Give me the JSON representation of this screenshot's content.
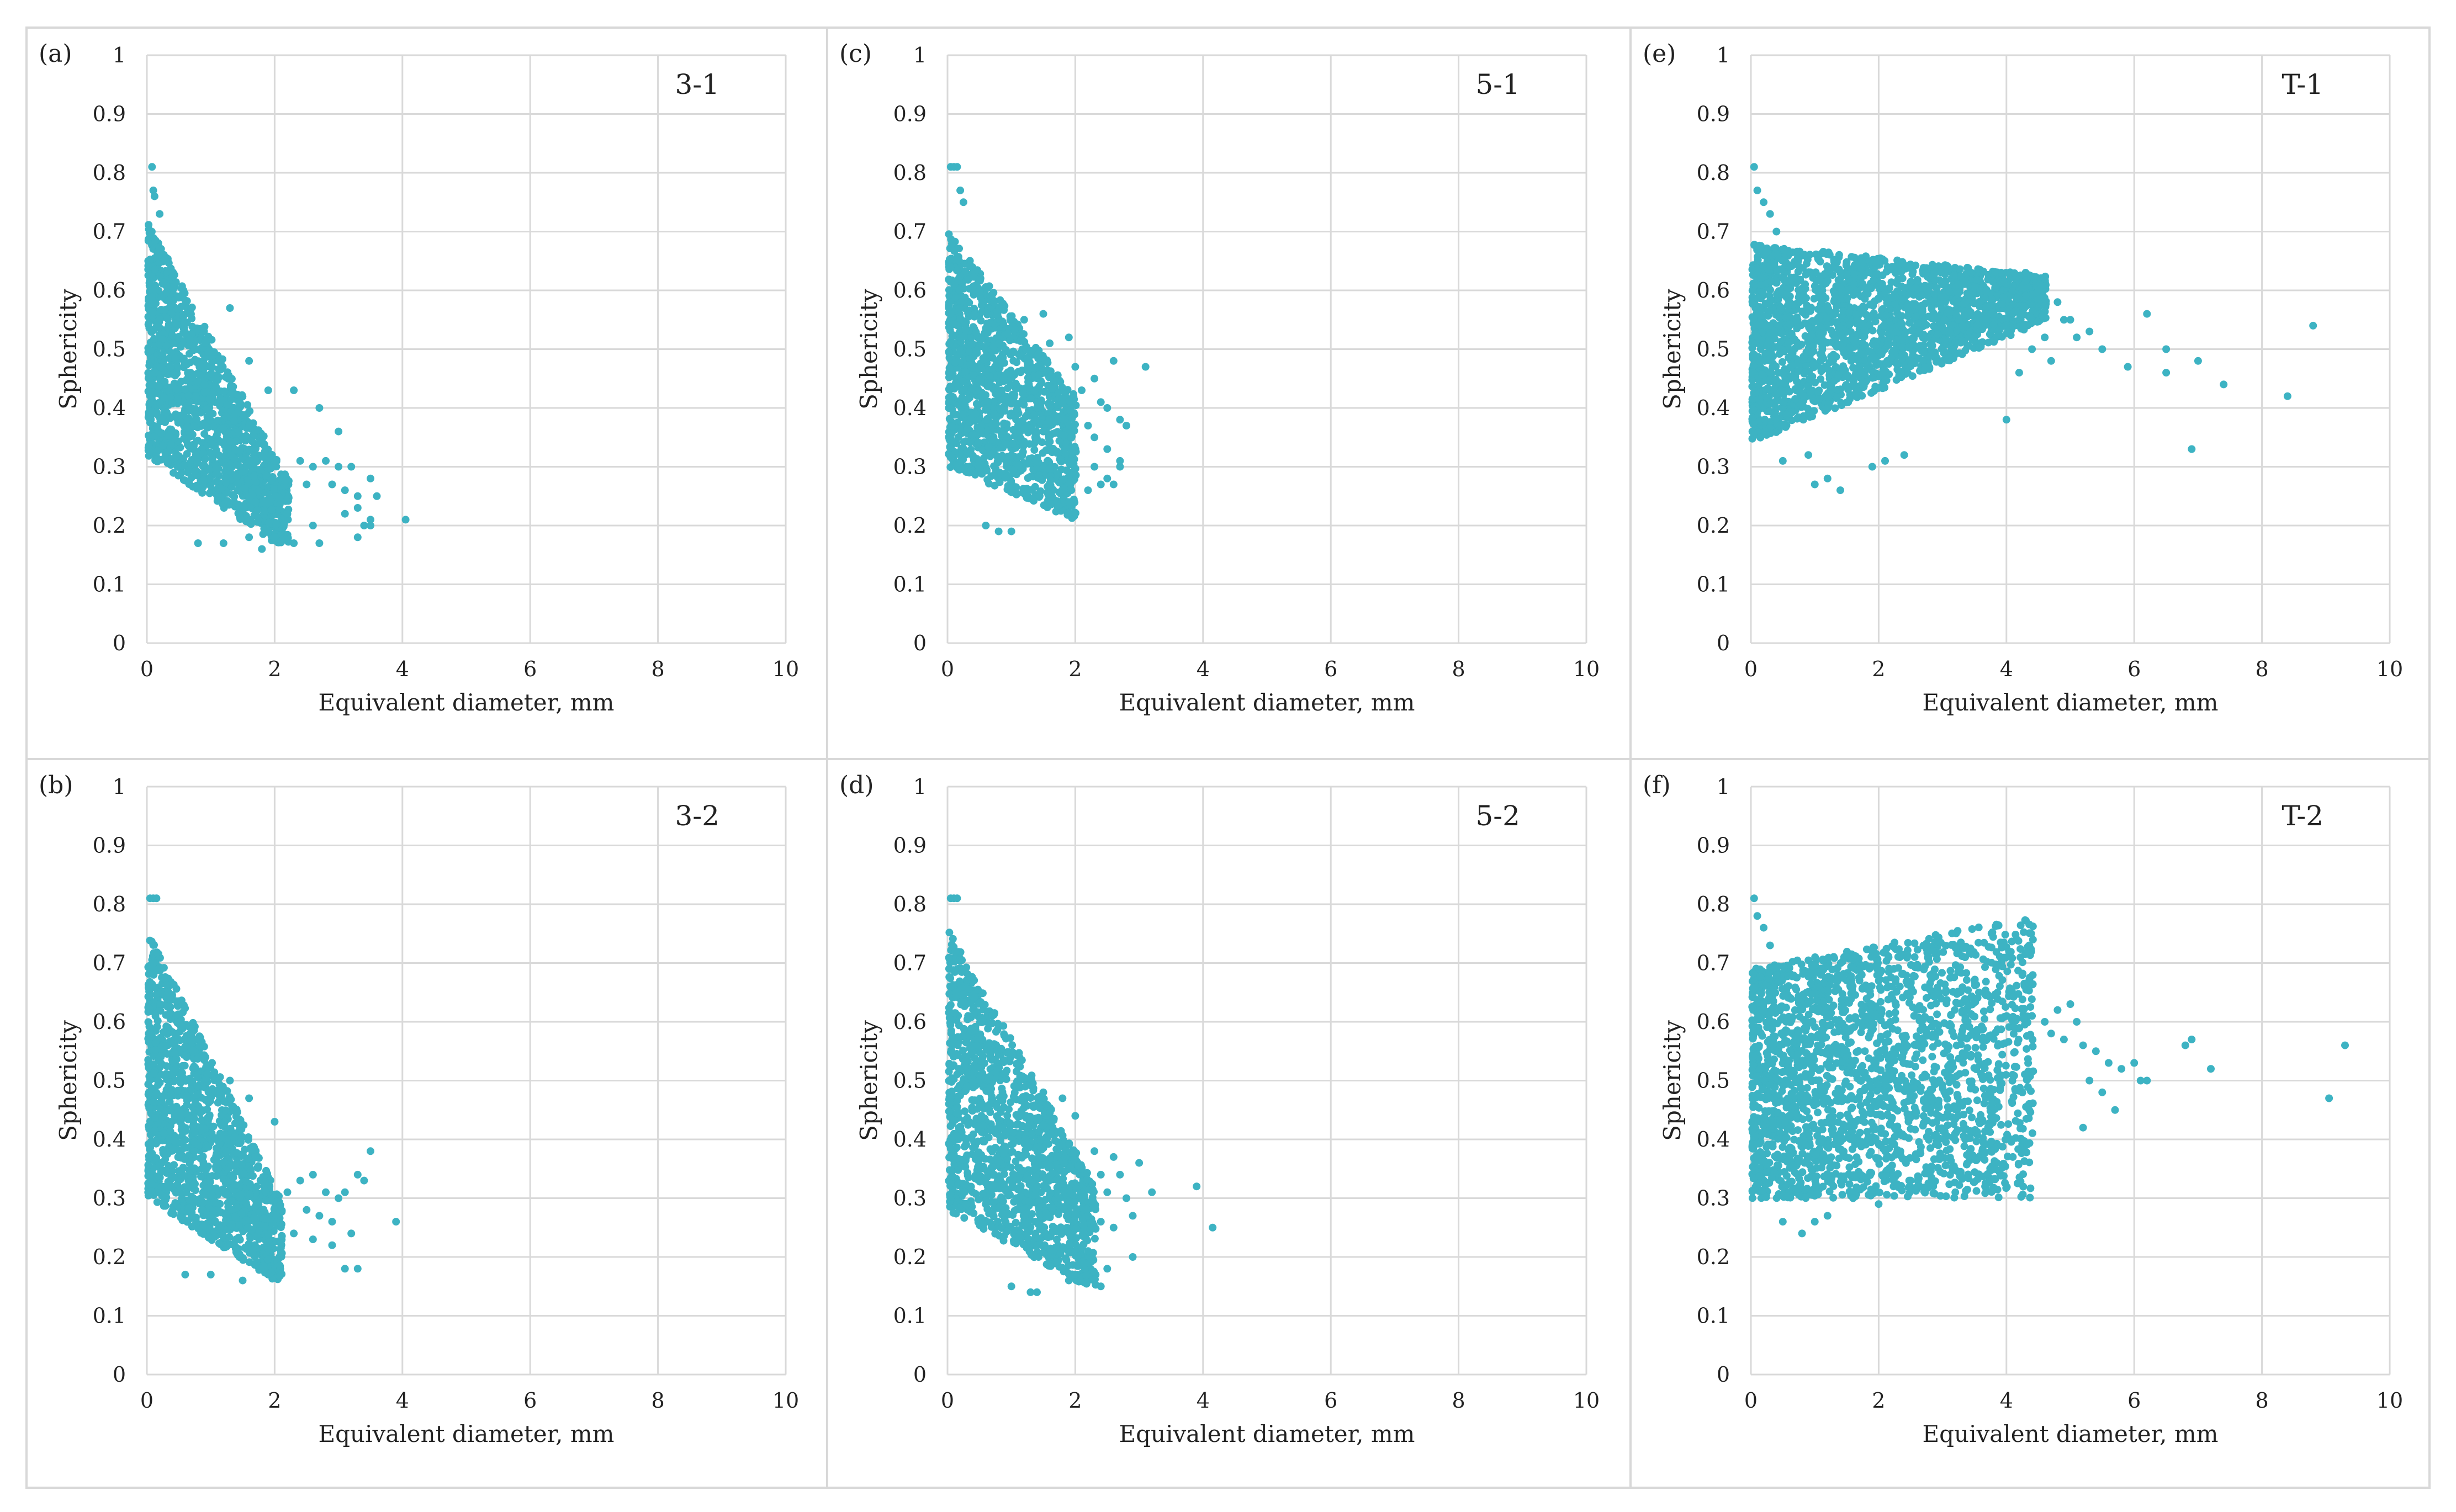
{
  "colors": {
    "points": "#3db3c3",
    "grid": "#d9d9d9",
    "border": "#d8d8d8",
    "text": "#222222"
  },
  "chart_data": [
    {
      "type": "scatter",
      "panel_label": "(a)",
      "series_label": "3-1",
      "xlabel": "Equivalent diameter, mm",
      "ylabel": "Sphericity",
      "xlim": [
        0,
        10
      ],
      "ylim": [
        0,
        1
      ],
      "xticks": [
        0,
        2,
        4,
        6,
        8,
        10
      ],
      "yticks": [
        0,
        0.1,
        0.2,
        0.3,
        0.4,
        0.5,
        0.6,
        0.7,
        0.8,
        0.9,
        1
      ],
      "xtick_labels": [
        "0",
        "2",
        "4",
        "6",
        "8",
        "10"
      ],
      "ytick_labels": [
        "0",
        "0.1",
        "0.2",
        "0.3",
        "0.4",
        "0.5",
        "0.6",
        "0.7",
        "0.8",
        "0.9",
        "1"
      ],
      "density": {
        "x_max": 2.2,
        "y_top_at_0": 0.72,
        "y_top_slope": 0.2,
        "y_bottom_at_0": 0.32,
        "y_bottom_slope": 0.075,
        "y_floor": 0.17,
        "n": 1400
      },
      "points": [
        [
          0.08,
          0.81
        ],
        [
          0.1,
          0.77
        ],
        [
          0.12,
          0.76
        ],
        [
          0.2,
          0.73
        ],
        [
          1.3,
          0.57
        ],
        [
          1.6,
          0.48
        ],
        [
          1.9,
          0.43
        ],
        [
          2.3,
          0.43
        ],
        [
          2.7,
          0.4
        ],
        [
          3.0,
          0.36
        ],
        [
          2.4,
          0.31
        ],
        [
          2.6,
          0.3
        ],
        [
          2.8,
          0.31
        ],
        [
          3.0,
          0.3
        ],
        [
          3.2,
          0.3
        ],
        [
          2.5,
          0.27
        ],
        [
          2.9,
          0.27
        ],
        [
          3.1,
          0.26
        ],
        [
          3.3,
          0.25
        ],
        [
          3.5,
          0.28
        ],
        [
          3.6,
          0.25
        ],
        [
          3.3,
          0.23
        ],
        [
          3.4,
          0.2
        ],
        [
          3.1,
          0.22
        ],
        [
          3.5,
          0.2
        ],
        [
          2.2,
          0.22
        ],
        [
          2.6,
          0.2
        ],
        [
          2.7,
          0.17
        ],
        [
          3.3,
          0.18
        ],
        [
          3.5,
          0.21
        ],
        [
          4.05,
          0.21
        ],
        [
          2.0,
          0.18
        ],
        [
          1.8,
          0.16
        ],
        [
          1.6,
          0.18
        ],
        [
          1.2,
          0.17
        ],
        [
          0.8,
          0.17
        ],
        [
          2.3,
          0.17
        ]
      ]
    },
    {
      "type": "scatter",
      "panel_label": "(b)",
      "series_label": "3-2",
      "xlabel": "Equivalent diameter, mm",
      "ylabel": "Sphericity",
      "xlim": [
        0,
        10
      ],
      "ylim": [
        0,
        1
      ],
      "xticks": [
        0,
        2,
        4,
        6,
        8,
        10
      ],
      "yticks": [
        0,
        0.1,
        0.2,
        0.3,
        0.4,
        0.5,
        0.6,
        0.7,
        0.8,
        0.9,
        1
      ],
      "xtick_labels": [
        "0",
        "2",
        "4",
        "6",
        "8",
        "10"
      ],
      "ytick_labels": [
        "0",
        "0.1",
        "0.2",
        "0.3",
        "0.4",
        "0.5",
        "0.6",
        "0.7",
        "0.8",
        "0.9",
        "1"
      ],
      "density": {
        "x_max": 2.1,
        "y_top_at_0": 0.76,
        "y_top_slope": 0.22,
        "y_bottom_at_0": 0.3,
        "y_bottom_slope": 0.07,
        "y_floor": 0.16,
        "n": 1400
      },
      "points": [
        [
          0.05,
          0.81
        ],
        [
          0.1,
          0.81
        ],
        [
          0.15,
          0.81
        ],
        [
          1.3,
          0.5
        ],
        [
          1.6,
          0.47
        ],
        [
          2.0,
          0.43
        ],
        [
          2.4,
          0.33
        ],
        [
          2.6,
          0.34
        ],
        [
          2.2,
          0.31
        ],
        [
          2.8,
          0.31
        ],
        [
          3.0,
          0.3
        ],
        [
          2.5,
          0.28
        ],
        [
          2.7,
          0.27
        ],
        [
          2.9,
          0.26
        ],
        [
          3.1,
          0.31
        ],
        [
          3.3,
          0.34
        ],
        [
          3.4,
          0.33
        ],
        [
          3.5,
          0.38
        ],
        [
          2.3,
          0.24
        ],
        [
          2.6,
          0.23
        ],
        [
          2.9,
          0.22
        ],
        [
          3.2,
          0.24
        ],
        [
          3.1,
          0.18
        ],
        [
          3.3,
          0.18
        ],
        [
          3.9,
          0.26
        ],
        [
          1.9,
          0.17
        ],
        [
          1.5,
          0.16
        ],
        [
          1.0,
          0.17
        ],
        [
          0.6,
          0.17
        ]
      ]
    },
    {
      "type": "scatter",
      "panel_label": "(c)",
      "series_label": "5-1",
      "xlabel": "Equivalent diameter, mm",
      "ylabel": "Sphericity",
      "xlim": [
        0,
        10
      ],
      "ylim": [
        0,
        1
      ],
      "xticks": [
        0,
        2,
        4,
        6,
        8,
        10
      ],
      "yticks": [
        0,
        0.1,
        0.2,
        0.3,
        0.4,
        0.5,
        0.6,
        0.7,
        0.8,
        0.9,
        1
      ],
      "xtick_labels": [
        "0",
        "2",
        "4",
        "6",
        "8",
        "10"
      ],
      "ytick_labels": [
        "0",
        "0.1",
        "0.2",
        "0.3",
        "0.4",
        "0.5",
        "0.6",
        "0.7",
        "0.8",
        "0.9",
        "1"
      ],
      "density": {
        "x_max": 2.0,
        "y_top_at_0": 0.7,
        "y_top_slope": 0.14,
        "y_bottom_at_0": 0.3,
        "y_bottom_slope": 0.045,
        "y_floor": 0.19,
        "n": 1300
      },
      "points": [
        [
          0.05,
          0.81
        ],
        [
          0.1,
          0.81
        ],
        [
          0.15,
          0.81
        ],
        [
          0.2,
          0.77
        ],
        [
          0.25,
          0.75
        ],
        [
          1.2,
          0.55
        ],
        [
          1.5,
          0.56
        ],
        [
          1.9,
          0.52
        ],
        [
          1.6,
          0.51
        ],
        [
          2.0,
          0.47
        ],
        [
          2.3,
          0.45
        ],
        [
          2.6,
          0.48
        ],
        [
          3.1,
          0.47
        ],
        [
          2.1,
          0.43
        ],
        [
          2.4,
          0.41
        ],
        [
          2.5,
          0.4
        ],
        [
          2.7,
          0.38
        ],
        [
          2.8,
          0.37
        ],
        [
          2.2,
          0.37
        ],
        [
          2.3,
          0.35
        ],
        [
          2.5,
          0.33
        ],
        [
          2.7,
          0.31
        ],
        [
          2.3,
          0.3
        ],
        [
          2.5,
          0.28
        ],
        [
          2.4,
          0.27
        ],
        [
          2.6,
          0.27
        ],
        [
          2.2,
          0.26
        ],
        [
          2.7,
          0.3
        ],
        [
          1.9,
          0.24
        ],
        [
          1.0,
          0.19
        ],
        [
          0.8,
          0.19
        ],
        [
          0.6,
          0.2
        ]
      ]
    },
    {
      "type": "scatter",
      "panel_label": "(d)",
      "series_label": "5-2",
      "xlabel": "Equivalent diameter, mm",
      "ylabel": "Sphericity",
      "xlim": [
        0,
        10
      ],
      "ylim": [
        0,
        1
      ],
      "xticks": [
        0,
        2,
        4,
        6,
        8,
        10
      ],
      "yticks": [
        0,
        0.1,
        0.2,
        0.3,
        0.4,
        0.5,
        0.6,
        0.7,
        0.8,
        0.9,
        1
      ],
      "xtick_labels": [
        "0",
        "2",
        "4",
        "6",
        "8",
        "10"
      ],
      "ytick_labels": [
        "0",
        "0.1",
        "0.2",
        "0.3",
        "0.4",
        "0.5",
        "0.6",
        "0.7",
        "0.8",
        "0.9",
        "1"
      ],
      "density": {
        "x_max": 2.3,
        "y_top_at_0": 0.76,
        "y_top_slope": 0.19,
        "y_bottom_at_0": 0.28,
        "y_bottom_slope": 0.06,
        "y_floor": 0.15,
        "n": 1400
      },
      "points": [
        [
          0.05,
          0.81
        ],
        [
          0.1,
          0.81
        ],
        [
          0.15,
          0.81
        ],
        [
          0.7,
          0.61
        ],
        [
          1.5,
          0.48
        ],
        [
          1.8,
          0.47
        ],
        [
          2.0,
          0.44
        ],
        [
          2.3,
          0.38
        ],
        [
          2.6,
          0.37
        ],
        [
          2.1,
          0.35
        ],
        [
          2.4,
          0.34
        ],
        [
          2.7,
          0.34
        ],
        [
          3.0,
          0.36
        ],
        [
          3.2,
          0.31
        ],
        [
          2.5,
          0.31
        ],
        [
          2.8,
          0.3
        ],
        [
          2.2,
          0.27
        ],
        [
          2.4,
          0.26
        ],
        [
          2.6,
          0.25
        ],
        [
          2.9,
          0.27
        ],
        [
          3.9,
          0.32
        ],
        [
          4.15,
          0.25
        ],
        [
          2.2,
          0.21
        ],
        [
          2.5,
          0.18
        ],
        [
          2.9,
          0.2
        ],
        [
          2.0,
          0.17
        ],
        [
          1.9,
          0.16
        ],
        [
          2.4,
          0.15
        ],
        [
          1.4,
          0.14
        ],
        [
          1.3,
          0.14
        ],
        [
          1.0,
          0.15
        ]
      ]
    },
    {
      "type": "scatter",
      "panel_label": "(e)",
      "series_label": "T-1",
      "xlabel": "Equivalent diameter, mm",
      "ylabel": "Sphericity",
      "xlim": [
        0,
        10
      ],
      "ylim": [
        0,
        1
      ],
      "xticks": [
        0,
        2,
        4,
        6,
        8,
        10
      ],
      "yticks": [
        0,
        0.1,
        0.2,
        0.3,
        0.4,
        0.5,
        0.6,
        0.7,
        0.8,
        0.9,
        1
      ],
      "xtick_labels": [
        "0",
        "2",
        "4",
        "6",
        "8",
        "10"
      ],
      "ytick_labels": [
        "0",
        "0.1",
        "0.2",
        "0.3",
        "0.4",
        "0.5",
        "0.6",
        "0.7",
        "0.8",
        "0.9",
        "1"
      ],
      "density": {
        "x_max": 4.6,
        "y_top_at_0": 0.68,
        "y_top_slope": 0.012,
        "y_bottom_at_0": 0.34,
        "y_bottom_slope": -0.045,
        "y_floor": 0.3,
        "n": 2200
      },
      "points": [
        [
          0.05,
          0.81
        ],
        [
          0.1,
          0.77
        ],
        [
          0.2,
          0.75
        ],
        [
          0.3,
          0.73
        ],
        [
          0.4,
          0.7
        ],
        [
          4.3,
          0.63
        ],
        [
          4.5,
          0.6
        ],
        [
          4.6,
          0.62
        ],
        [
          4.8,
          0.58
        ],
        [
          4.9,
          0.55
        ],
        [
          5.0,
          0.55
        ],
        [
          5.1,
          0.52
        ],
        [
          5.3,
          0.53
        ],
        [
          5.5,
          0.5
        ],
        [
          4.6,
          0.52
        ],
        [
          4.4,
          0.5
        ],
        [
          4.7,
          0.48
        ],
        [
          4.2,
          0.46
        ],
        [
          5.9,
          0.47
        ],
        [
          6.2,
          0.56
        ],
        [
          6.5,
          0.5
        ],
        [
          6.5,
          0.46
        ],
        [
          7.0,
          0.48
        ],
        [
          7.4,
          0.44
        ],
        [
          8.4,
          0.42
        ],
        [
          8.8,
          0.54
        ],
        [
          6.9,
          0.33
        ],
        [
          4.0,
          0.38
        ],
        [
          2.4,
          0.32
        ],
        [
          1.2,
          0.28
        ],
        [
          1.0,
          0.27
        ],
        [
          1.9,
          0.3
        ],
        [
          2.1,
          0.31
        ],
        [
          1.4,
          0.26
        ],
        [
          0.5,
          0.31
        ],
        [
          0.9,
          0.32
        ]
      ]
    },
    {
      "type": "scatter",
      "panel_label": "(f)",
      "series_label": "T-2",
      "xlabel": "Equivalent diameter, mm",
      "ylabel": "Sphericity",
      "xlim": [
        0,
        10
      ],
      "ylim": [
        0,
        1
      ],
      "xticks": [
        0,
        2,
        4,
        6,
        8,
        10
      ],
      "yticks": [
        0,
        0.1,
        0.2,
        0.3,
        0.4,
        0.5,
        0.6,
        0.7,
        0.8,
        0.9,
        1
      ],
      "xtick_labels": [
        "0",
        "2",
        "4",
        "6",
        "8",
        "10"
      ],
      "ytick_labels": [
        "0",
        "0.1",
        "0.2",
        "0.3",
        "0.4",
        "0.5",
        "0.6",
        "0.7",
        "0.8",
        "0.9",
        "1"
      ],
      "density": {
        "x_max": 4.4,
        "y_top_at_0": 0.69,
        "y_top_slope": -0.02,
        "y_bottom_at_0": 0.3,
        "y_bottom_slope": 0.0,
        "y_floor": 0.27,
        "n": 2300
      },
      "points": [
        [
          0.05,
          0.81
        ],
        [
          0.1,
          0.78
        ],
        [
          0.2,
          0.76
        ],
        [
          0.3,
          0.73
        ],
        [
          4.4,
          0.61
        ],
        [
          4.6,
          0.6
        ],
        [
          4.8,
          0.62
        ],
        [
          5.0,
          0.63
        ],
        [
          5.1,
          0.6
        ],
        [
          4.7,
          0.58
        ],
        [
          4.9,
          0.57
        ],
        [
          5.2,
          0.56
        ],
        [
          5.4,
          0.55
        ],
        [
          5.6,
          0.53
        ],
        [
          5.8,
          0.52
        ],
        [
          6.0,
          0.53
        ],
        [
          6.1,
          0.5
        ],
        [
          6.2,
          0.5
        ],
        [
          5.3,
          0.5
        ],
        [
          5.5,
          0.48
        ],
        [
          5.7,
          0.45
        ],
        [
          5.2,
          0.42
        ],
        [
          6.8,
          0.56
        ],
        [
          6.9,
          0.57
        ],
        [
          7.2,
          0.52
        ],
        [
          9.05,
          0.47
        ],
        [
          9.3,
          0.56
        ],
        [
          4.1,
          0.37
        ],
        [
          3.2,
          0.31
        ],
        [
          2.5,
          0.33
        ],
        [
          2.0,
          0.29
        ],
        [
          1.6,
          0.3
        ],
        [
          1.2,
          0.27
        ],
        [
          1.0,
          0.26
        ],
        [
          0.8,
          0.24
        ],
        [
          0.5,
          0.26
        ]
      ]
    }
  ]
}
